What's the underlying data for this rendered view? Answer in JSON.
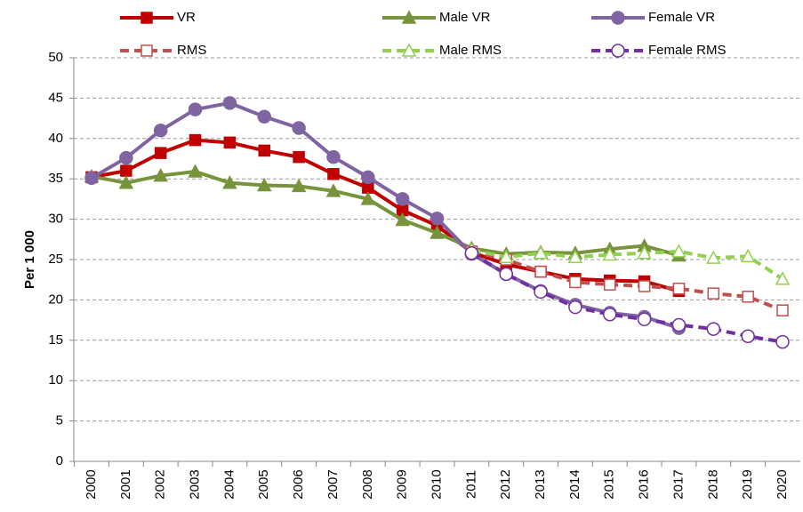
{
  "chart_data": {
    "type": "line",
    "y_label": "Per 1 000",
    "categories": [
      "2000",
      "2001",
      "2002",
      "2003",
      "2004",
      "2005",
      "2006",
      "2007",
      "2008",
      "2009",
      "2010",
      "2011",
      "2012",
      "2013",
      "2014",
      "2015",
      "2016",
      "2017",
      "2018",
      "2019",
      "2020"
    ],
    "ylim": [
      0,
      50
    ],
    "yticks": [
      0,
      5,
      10,
      15,
      20,
      25,
      30,
      35,
      40,
      45,
      50
    ],
    "grid": true,
    "legend": "top",
    "series": [
      {
        "name": "VR",
        "color": "#c00000",
        "style": "solid",
        "marker": "square",
        "values": [
          35.2,
          36.0,
          38.2,
          39.8,
          39.5,
          38.5,
          37.7,
          35.6,
          33.9,
          31.1,
          29.2,
          25.9,
          24.4,
          23.5,
          22.6,
          22.4,
          22.3,
          21.1,
          null,
          null,
          null
        ]
      },
      {
        "name": "Male VR",
        "color": "#77933c",
        "style": "solid",
        "marker": "triangle",
        "values": [
          35.3,
          34.5,
          35.4,
          35.9,
          34.5,
          34.2,
          34.1,
          33.5,
          32.5,
          29.9,
          28.3,
          26.4,
          25.7,
          25.9,
          25.8,
          26.3,
          26.7,
          25.5,
          null,
          null,
          null
        ]
      },
      {
        "name": "Female VR",
        "color": "#8064a2",
        "style": "solid",
        "marker": "circle",
        "values": [
          35.1,
          37.6,
          41.0,
          43.6,
          44.4,
          42.7,
          41.3,
          37.7,
          35.2,
          32.5,
          30.1,
          25.7,
          23.2,
          21.1,
          19.4,
          18.4,
          17.9,
          16.5,
          null,
          null,
          null
        ]
      },
      {
        "name": "RMS",
        "color": "#c0504d",
        "style": "dashed",
        "marker": "square",
        "values": [
          null,
          null,
          null,
          null,
          null,
          null,
          null,
          null,
          null,
          null,
          null,
          26.0,
          25.0,
          23.5,
          22.2,
          21.9,
          21.7,
          21.4,
          20.8,
          20.4,
          18.7
        ]
      },
      {
        "name": "Male RMS",
        "color": "#92d050",
        "style": "dashed",
        "marker": "triangle",
        "values": [
          null,
          null,
          null,
          null,
          null,
          null,
          null,
          null,
          null,
          null,
          null,
          26.2,
          25.3,
          25.8,
          25.3,
          25.6,
          25.8,
          26.0,
          25.2,
          25.4,
          22.6
        ]
      },
      {
        "name": "Female RMS",
        "color": "#7030a0",
        "style": "dashed",
        "marker": "circle",
        "values": [
          null,
          null,
          null,
          null,
          null,
          null,
          null,
          null,
          null,
          null,
          null,
          25.8,
          23.2,
          21.0,
          19.1,
          18.2,
          17.6,
          16.9,
          16.4,
          15.5,
          14.8
        ]
      }
    ]
  }
}
